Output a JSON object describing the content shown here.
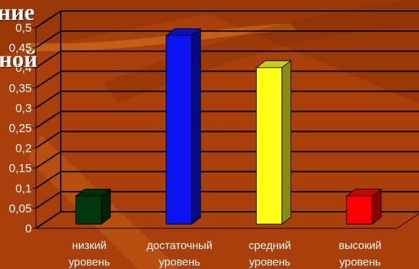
{
  "background": {
    "base_color": "#a93f0a",
    "light_streak_color": "#d97a1e",
    "dark_streak_color": "#7e2a05"
  },
  "slide_title_fragments": [
    "ние",
    "ной"
  ],
  "chart_data": {
    "type": "bar",
    "style": "3d",
    "categories": [
      "низкий уровень",
      "достаточный уровень",
      "средний уровень",
      "высокий уровень"
    ],
    "category_lines": [
      [
        "низкий",
        "уровень"
      ],
      [
        "достаточный",
        "уровень"
      ],
      [
        "средний",
        "уровень"
      ],
      [
        "высокий",
        "уровень"
      ]
    ],
    "values": [
      0.07,
      0.47,
      0.39,
      0.07
    ],
    "colors": [
      "#003a0c",
      "#0a14f0",
      "#ffff14",
      "#ff0000"
    ],
    "ylim": [
      0,
      0.5
    ],
    "yticks": [
      "0",
      "0,05",
      "0,1",
      "0,15",
      "0,2",
      "0,25",
      "0,3",
      "0,35",
      "0,4",
      "0,45",
      "0,5"
    ],
    "grid": true,
    "legend": false,
    "title": "",
    "xlabel": "",
    "ylabel": ""
  }
}
